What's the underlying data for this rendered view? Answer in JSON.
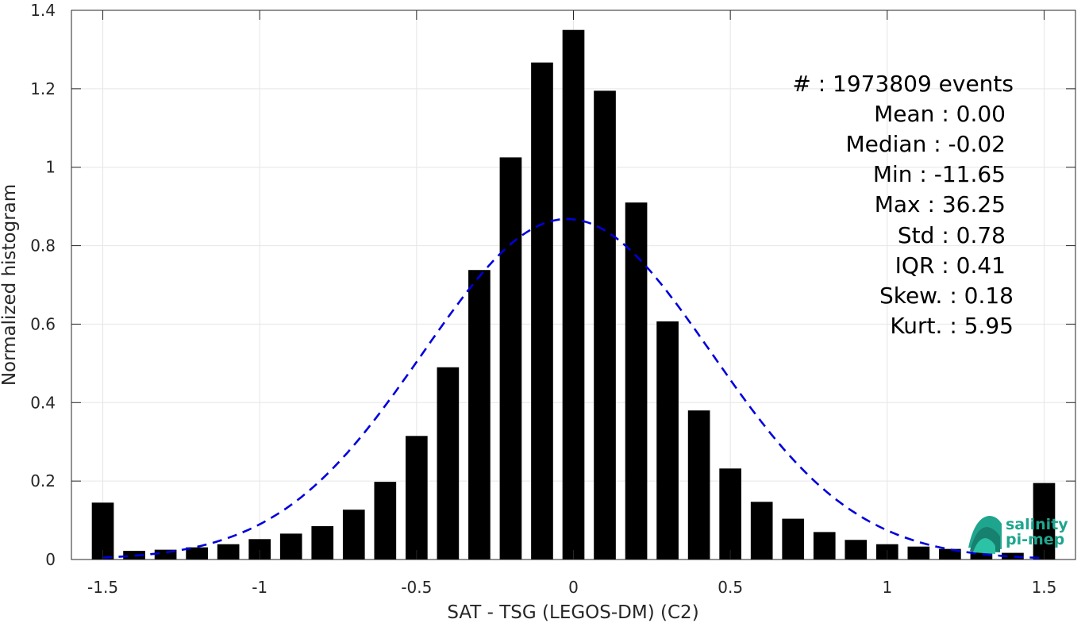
{
  "chart_data": {
    "type": "bar",
    "xlabel": "SAT - TSG (LEGOS-DM) (C2)",
    "ylabel": "Normalized histogram",
    "xlim": [
      -1.6,
      1.6
    ],
    "ylim": [
      0,
      1.4
    ],
    "grid": true,
    "xticks": [
      -1.5,
      -1,
      -0.5,
      0,
      0.5,
      1,
      1.5
    ],
    "xtick_labels": [
      "-1.5",
      "-1",
      "-0.5",
      "0",
      "0.5",
      "1",
      "1.5"
    ],
    "yticks": [
      0,
      0.2,
      0.4,
      0.6,
      0.8,
      1,
      1.2,
      1.4
    ],
    "ytick_labels": [
      "0",
      "0.2",
      "0.4",
      "0.6",
      "0.8",
      "1",
      "1.2",
      "1.4"
    ],
    "bar_width": 0.07,
    "bar_color": "#000000",
    "bins": [
      {
        "x": -1.5,
        "y": 0.145
      },
      {
        "x": -1.4,
        "y": 0.022
      },
      {
        "x": -1.3,
        "y": 0.025
      },
      {
        "x": -1.2,
        "y": 0.031
      },
      {
        "x": -1.1,
        "y": 0.039
      },
      {
        "x": -1.0,
        "y": 0.052
      },
      {
        "x": -0.9,
        "y": 0.066
      },
      {
        "x": -0.8,
        "y": 0.085
      },
      {
        "x": -0.7,
        "y": 0.127
      },
      {
        "x": -0.6,
        "y": 0.198
      },
      {
        "x": -0.5,
        "y": 0.315
      },
      {
        "x": -0.4,
        "y": 0.49
      },
      {
        "x": -0.3,
        "y": 0.738
      },
      {
        "x": -0.2,
        "y": 1.025
      },
      {
        "x": -0.1,
        "y": 1.267
      },
      {
        "x": 0.0,
        "y": 1.35
      },
      {
        "x": 0.1,
        "y": 1.195
      },
      {
        "x": 0.2,
        "y": 0.91
      },
      {
        "x": 0.3,
        "y": 0.607
      },
      {
        "x": 0.4,
        "y": 0.38
      },
      {
        "x": 0.5,
        "y": 0.232
      },
      {
        "x": 0.6,
        "y": 0.147
      },
      {
        "x": 0.7,
        "y": 0.104
      },
      {
        "x": 0.8,
        "y": 0.07
      },
      {
        "x": 0.9,
        "y": 0.05
      },
      {
        "x": 1.0,
        "y": 0.039
      },
      {
        "x": 1.1,
        "y": 0.033
      },
      {
        "x": 1.2,
        "y": 0.027
      },
      {
        "x": 1.3,
        "y": 0.021
      },
      {
        "x": 1.4,
        "y": 0.017
      },
      {
        "x": 1.5,
        "y": 0.195
      }
    ],
    "fit_curve": {
      "type": "gaussian",
      "mean": -0.02,
      "sigma": 0.46,
      "peak": 0.868,
      "x_range": [
        -1.5,
        1.5
      ],
      "color": "#0000dd",
      "style": "dashed"
    },
    "stats": {
      "count": "#  : 1973809 events",
      "mean": "Mean : 0.00",
      "median": "Median : -0.02",
      "min": "Min : -11.65",
      "max": "Max : 36.25",
      "std": "Std : 0.78",
      "iqr": "IQR : 0.41",
      "skew": "Skew. : 0.18",
      "kurt": "Kurt. : 5.95"
    }
  },
  "logo": {
    "line1": "salinity",
    "line2": "pi-mep",
    "color": "#1fa58e"
  }
}
